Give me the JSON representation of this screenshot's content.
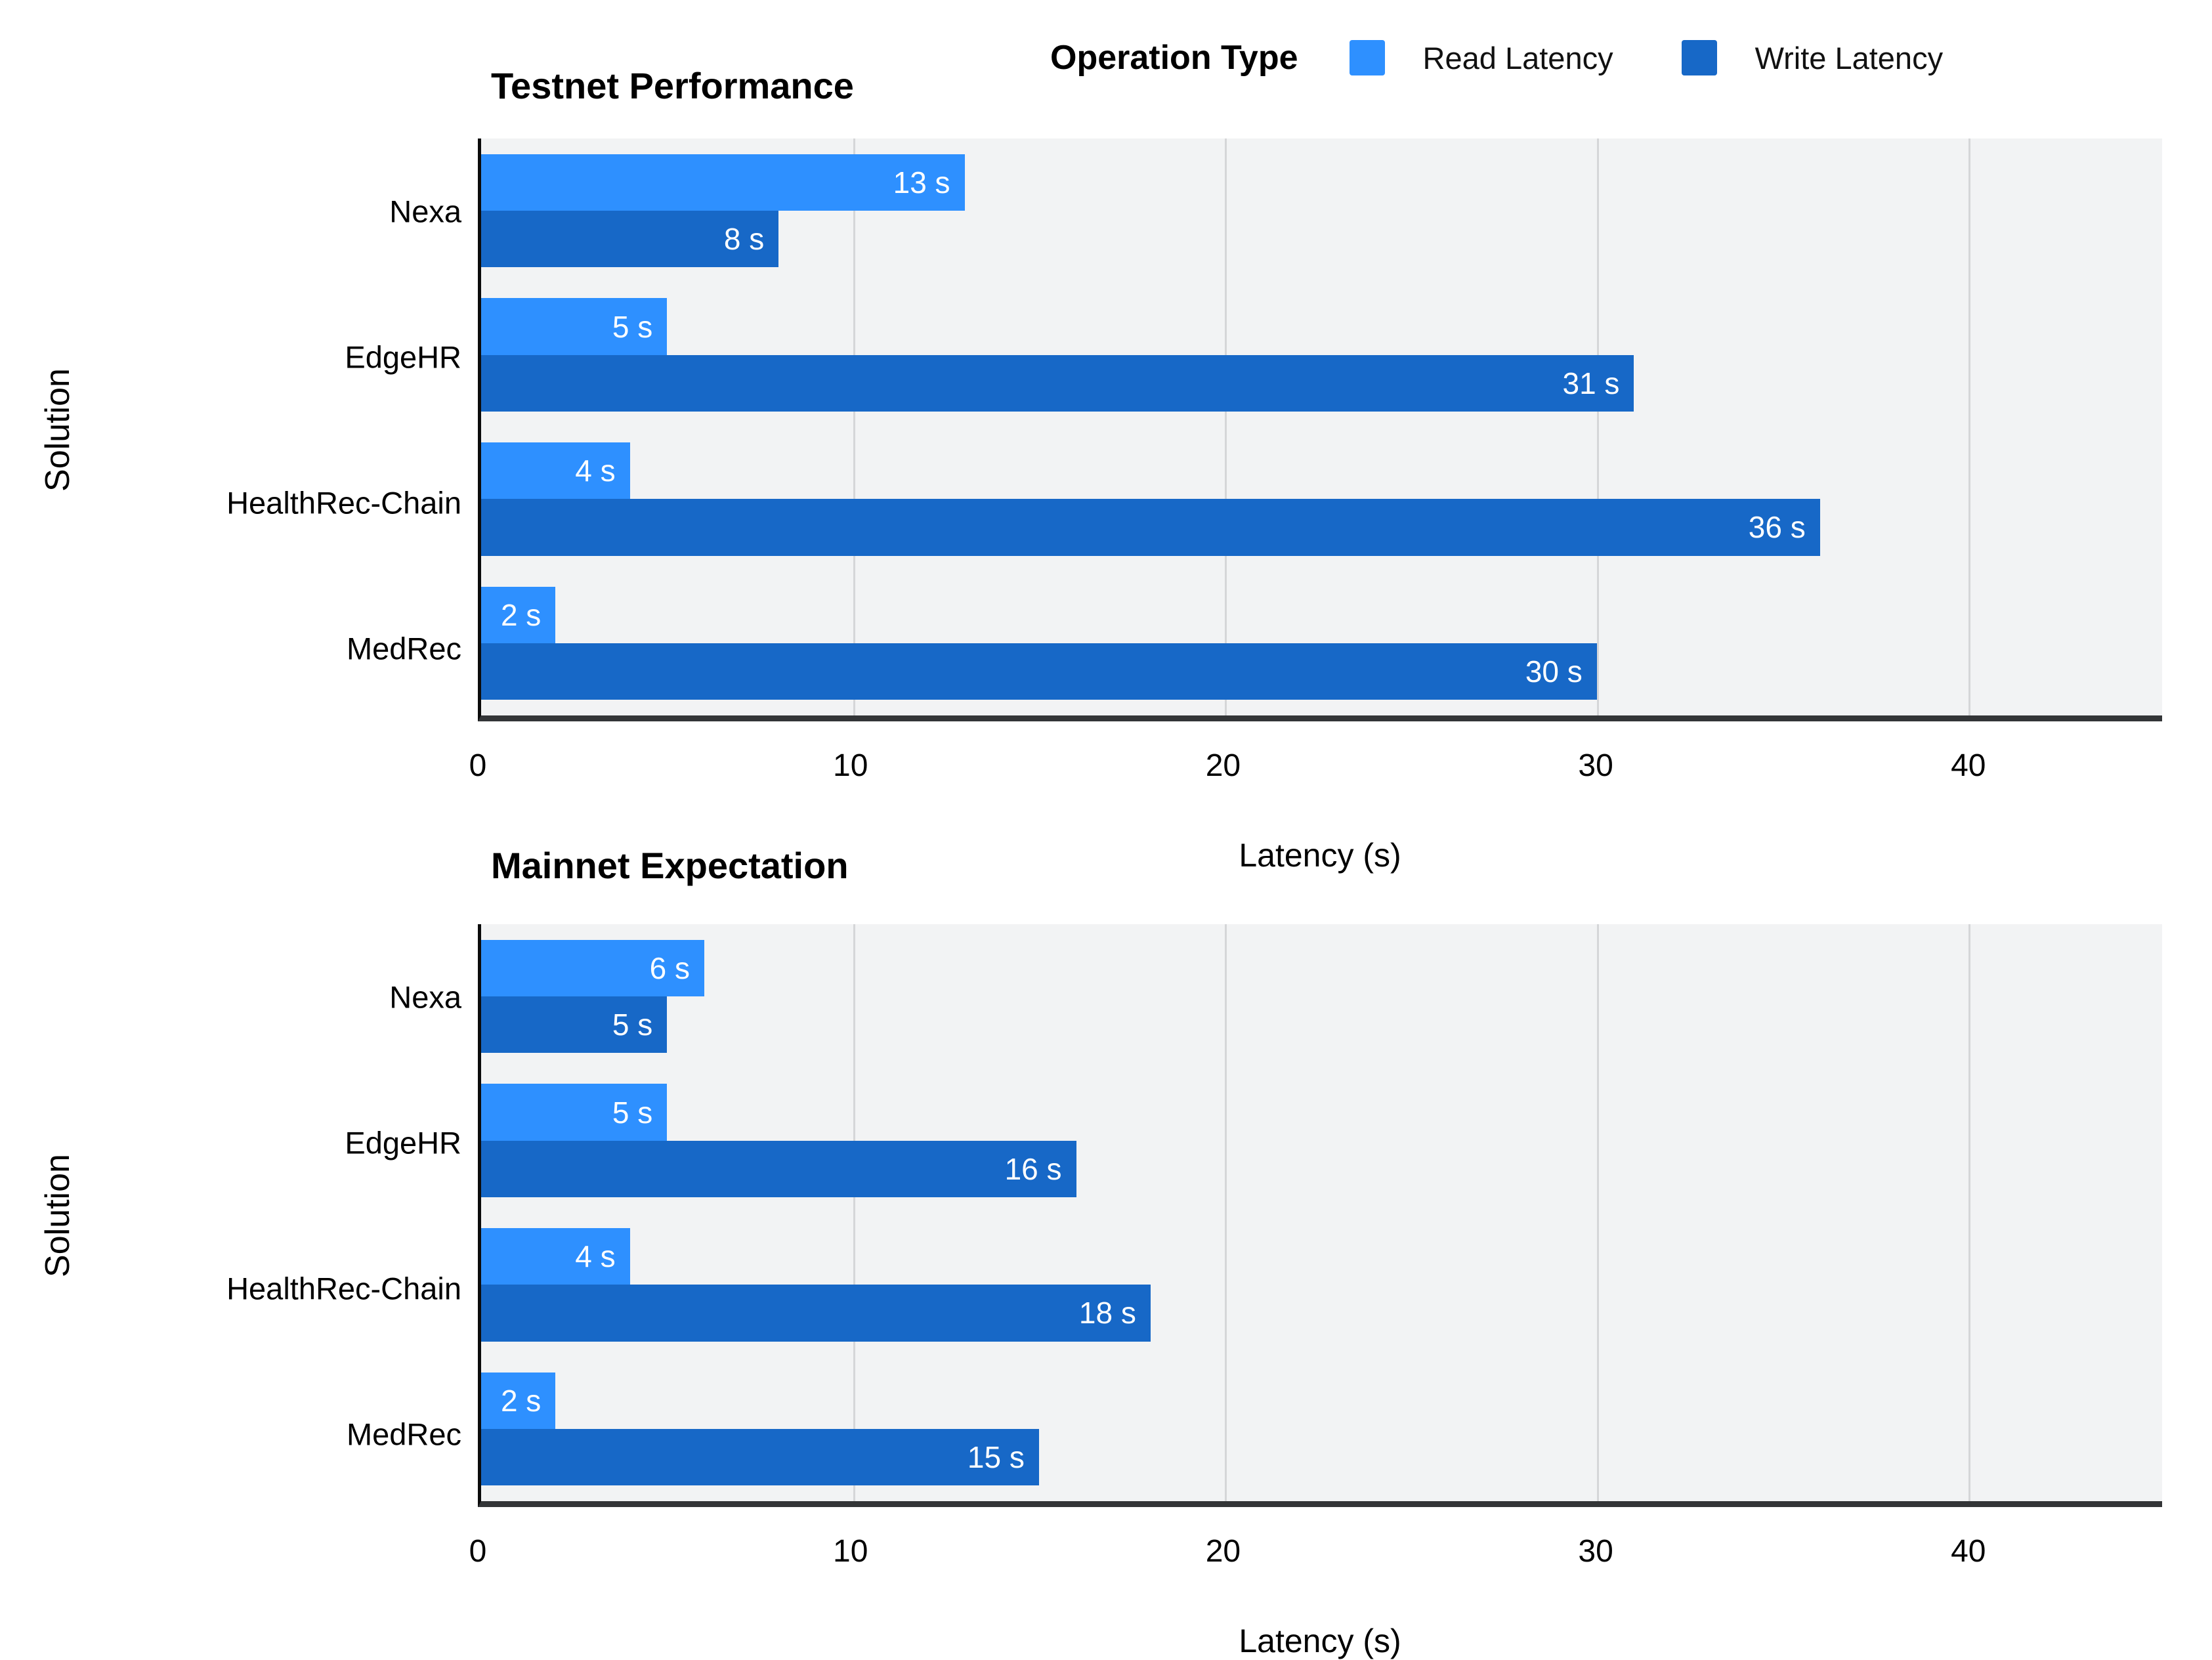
{
  "legend": {
    "title": "Operation Type",
    "items": [
      {
        "label": "Read Latency",
        "color": "#2E90FF"
      },
      {
        "label": "Write Latency",
        "color": "#1768C7"
      }
    ]
  },
  "chart_data": [
    {
      "type": "bar",
      "orientation": "horizontal",
      "title": "Testnet Performance",
      "xlabel": "Latency (s)",
      "ylabel": "Solution",
      "categories": [
        "Nexa",
        "EdgeHR",
        "HealthRec-Chain",
        "MedRec"
      ],
      "series": [
        {
          "name": "Read Latency",
          "color": "#2E90FF",
          "values": [
            13,
            5,
            4,
            2
          ]
        },
        {
          "name": "Write Latency",
          "color": "#1768C7",
          "values": [
            8,
            31,
            36,
            30
          ]
        }
      ],
      "value_suffix": " s",
      "xlim": [
        0,
        45.2
      ],
      "xticks": [
        0,
        10,
        20,
        30,
        40
      ],
      "grid": true,
      "plot_bg": "#F2F3F4",
      "legend_position": "top"
    },
    {
      "type": "bar",
      "orientation": "horizontal",
      "title": "Mainnet Expectation",
      "xlabel": "Latency (s)",
      "ylabel": "Solution",
      "categories": [
        "Nexa",
        "EdgeHR",
        "HealthRec-Chain",
        "MedRec"
      ],
      "series": [
        {
          "name": "Read Latency",
          "color": "#2E90FF",
          "values": [
            6,
            5,
            4,
            2
          ]
        },
        {
          "name": "Write Latency",
          "color": "#1768C7",
          "values": [
            5,
            16,
            18,
            15
          ]
        }
      ],
      "value_suffix": " s",
      "xlim": [
        0,
        45.2
      ],
      "xticks": [
        0,
        10,
        20,
        30,
        40
      ],
      "grid": true,
      "plot_bg": "#F2F3F4",
      "legend_position": "top"
    }
  ]
}
